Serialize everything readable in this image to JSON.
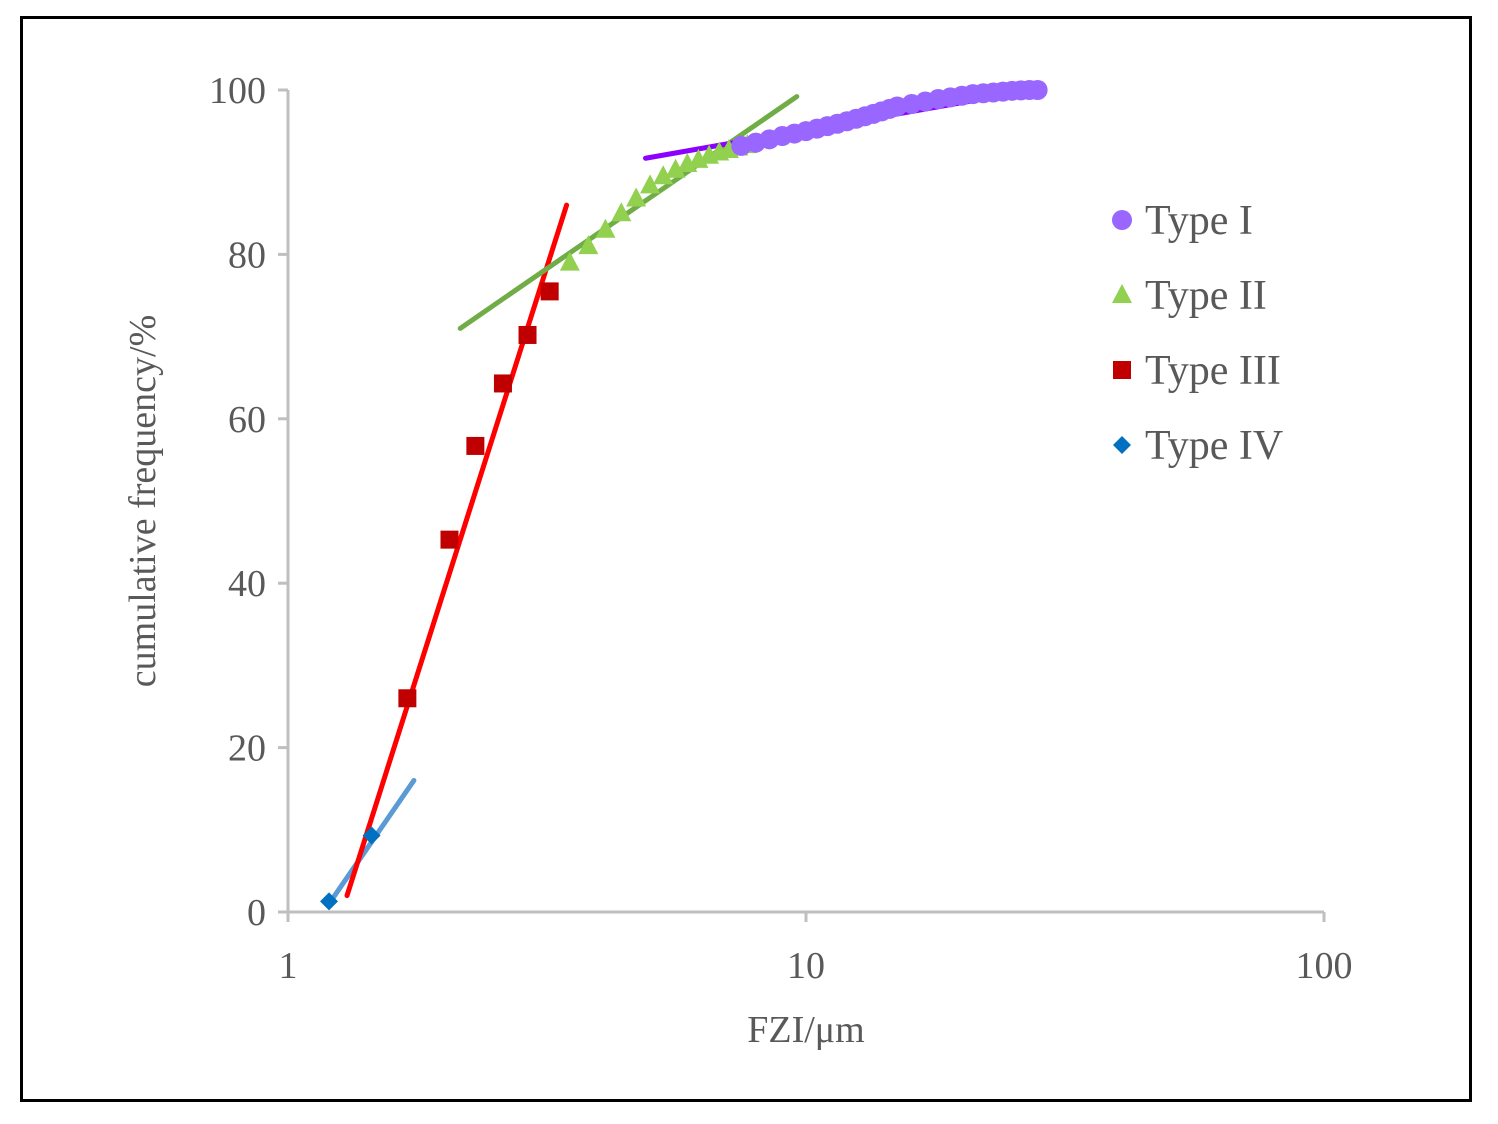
{
  "chart_data": {
    "type": "scatter",
    "title": "",
    "xlabel": "FZI/μm",
    "ylabel": "cumulative frequency/%",
    "xscale": "log",
    "xlim": [
      1,
      100
    ],
    "ylim": [
      0,
      100
    ],
    "x_ticks": [
      {
        "value": 1,
        "label": "1"
      },
      {
        "value": 10,
        "label": "10"
      },
      {
        "value": 100,
        "label": "100"
      }
    ],
    "y_ticks": [
      {
        "value": 0,
        "label": "0"
      },
      {
        "value": 20,
        "label": "20"
      },
      {
        "value": 40,
        "label": "40"
      },
      {
        "value": 60,
        "label": "60"
      },
      {
        "value": 80,
        "label": "80"
      },
      {
        "value": 100,
        "label": "100"
      }
    ],
    "grid": false,
    "legend_position": "right",
    "series": [
      {
        "name": "Type I",
        "marker": "circle",
        "color": "#9966ff",
        "x": [
          7.5,
          8.0,
          8.5,
          9.0,
          9.5,
          10.0,
          10.5,
          11.0,
          11.5,
          12.0,
          12.5,
          13.0,
          13.5,
          14.0,
          14.5,
          15.0,
          16.0,
          17.0,
          18.0,
          19.0,
          20.0,
          21.0,
          22.0,
          23.0,
          24.0,
          25.0,
          26.0,
          27.0,
          28.0
        ],
        "y": [
          93.2,
          93.6,
          94.0,
          94.4,
          94.7,
          95.0,
          95.3,
          95.6,
          95.9,
          96.2,
          96.5,
          96.8,
          97.1,
          97.4,
          97.7,
          98.0,
          98.3,
          98.6,
          98.9,
          99.1,
          99.3,
          99.5,
          99.6,
          99.7,
          99.8,
          99.9,
          99.95,
          100.0,
          100.0
        ],
        "trend": {
          "x": [
            4.9,
            27.5
          ],
          "y": [
            91.7,
            100.0
          ],
          "color": "#8b00ff"
        }
      },
      {
        "name": "Type II",
        "marker": "triangle",
        "color": "#92d050",
        "x": [
          3.5,
          3.8,
          4.1,
          4.4,
          4.7,
          5.0,
          5.3,
          5.6,
          5.9,
          6.2,
          6.5,
          6.8,
          7.1,
          7.4,
          7.7
        ],
        "y": [
          79.0,
          81.0,
          83.0,
          85.0,
          86.8,
          88.4,
          89.5,
          90.3,
          91.0,
          91.5,
          92.0,
          92.4,
          92.7,
          93.0,
          93.3
        ],
        "trend": {
          "x": [
            2.15,
            9.6
          ],
          "y": [
            71.0,
            99.2
          ],
          "color": "#70ad47"
        }
      },
      {
        "name": "Type III",
        "marker": "square",
        "color": "#c00000",
        "x": [
          1.7,
          2.05,
          2.3,
          2.6,
          2.9,
          3.2
        ],
        "y": [
          26.0,
          45.3,
          56.7,
          64.3,
          70.2,
          75.5
        ],
        "trend": {
          "x": [
            1.3,
            3.45
          ],
          "y": [
            2.0,
            86.0
          ],
          "color": "#ff0000"
        }
      },
      {
        "name": "Type IV",
        "marker": "diamond",
        "color": "#0070c0",
        "x": [
          1.2,
          1.45
        ],
        "y": [
          1.3,
          9.3
        ],
        "trend": {
          "x": [
            1.2,
            1.75
          ],
          "y": [
            1.0,
            16.0
          ],
          "color": "#5b9bd5"
        }
      }
    ]
  }
}
